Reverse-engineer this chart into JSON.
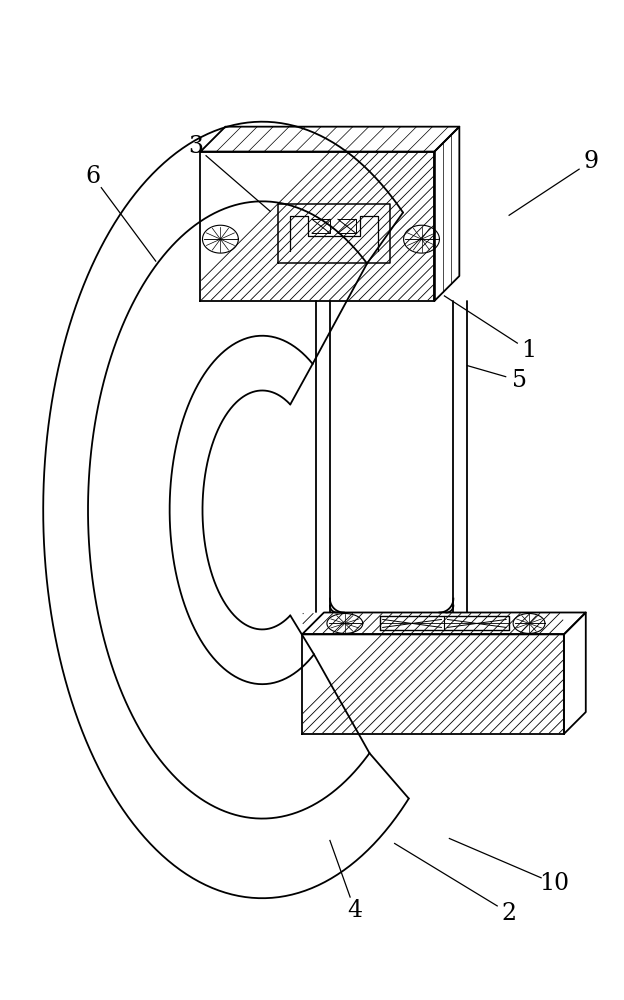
{
  "bg_color": "#ffffff",
  "line_color": "#000000",
  "fig_width": 6.24,
  "fig_height": 10.0,
  "lw_main": 1.3,
  "lw_hatch": 0.6,
  "lw_label": 0.9
}
